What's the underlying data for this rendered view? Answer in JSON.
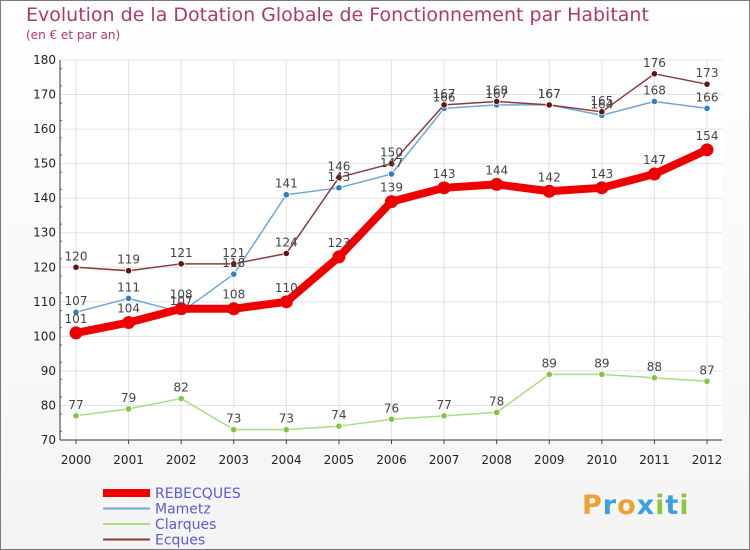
{
  "header": {
    "title": "Evolution de la Dotation Globale de Fonctionnement par Habitant",
    "subtitle": "(en € et par an)"
  },
  "logo": {
    "letters": [
      "P",
      "r",
      "o",
      "x",
      "i",
      "t",
      "i"
    ],
    "colors": [
      "#f0a030",
      "#3fa0dd",
      "#f0a030",
      "#3fa0dd",
      "#8cc63f",
      "#3fa0dd",
      "#8cc63f"
    ]
  },
  "chart_data": {
    "type": "line",
    "title": "Evolution de la Dotation Globale de Fonctionnement par Habitant",
    "subtitle": "(en € et par an)",
    "xlabel": "",
    "ylabel": "",
    "x": [
      "2000",
      "2001",
      "2002",
      "2003",
      "2004",
      "2005",
      "2006",
      "2007",
      "2008",
      "2009",
      "2010",
      "2011",
      "2012"
    ],
    "ylim": [
      70,
      180
    ],
    "yticks": [
      70,
      80,
      90,
      100,
      110,
      120,
      130,
      140,
      150,
      160,
      170,
      180
    ],
    "grid": true,
    "legend_position": "bottom-left",
    "series": [
      {
        "name": "REBECQUES",
        "color": "#ee0000",
        "marker": "#ee0000",
        "emphasis": true,
        "values": [
          101,
          104,
          108,
          108,
          110,
          123,
          139,
          143,
          144,
          142,
          143,
          147,
          154
        ]
      },
      {
        "name": "Mametz",
        "color": "#6ea6d8",
        "marker": "#2f7fc4",
        "emphasis": false,
        "values": [
          107,
          111,
          107,
          118,
          141,
          143,
          147,
          166,
          167,
          167,
          164,
          168,
          166
        ]
      },
      {
        "name": "Clarques",
        "color": "#a9dc86",
        "marker": "#7fc643",
        "emphasis": false,
        "values": [
          77,
          79,
          82,
          73,
          73,
          74,
          76,
          77,
          78,
          89,
          89,
          88,
          87
        ]
      },
      {
        "name": "Ecques",
        "color": "#8a3a3a",
        "marker": "#6a1010",
        "emphasis": false,
        "values": [
          120,
          119,
          121,
          121,
          124,
          146,
          150,
          167,
          168,
          167,
          165,
          176,
          173
        ]
      }
    ]
  }
}
